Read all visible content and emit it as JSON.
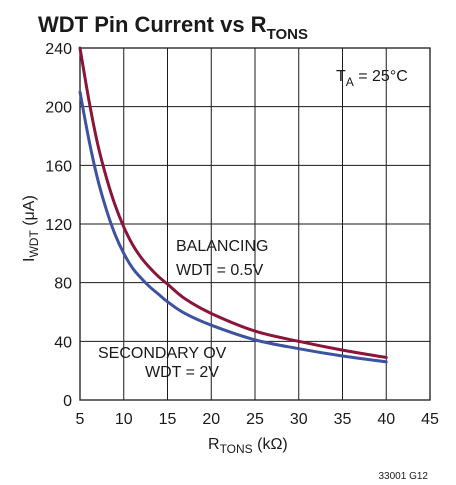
{
  "chart_data": {
    "type": "line",
    "title": {
      "main": "WDT Pin Current vs R",
      "sub": "TONS"
    },
    "xlabel": {
      "main": "R",
      "sub": "TONS",
      "rest": " (kΩ)"
    },
    "ylabel": {
      "main": "I",
      "sub": "WDT",
      "rest": " (μA)"
    },
    "xlim": [
      5,
      45
    ],
    "ylim": [
      0,
      240
    ],
    "xticks": [
      "5",
      "10",
      "15",
      "20",
      "25",
      "30",
      "35",
      "40",
      "45"
    ],
    "yticks": [
      "0",
      "40",
      "80",
      "120",
      "160",
      "200",
      "240"
    ],
    "grid": true,
    "condition": {
      "main": "T",
      "sub": "A",
      "rest": " = 25°C"
    },
    "series": [
      {
        "labels": [
          "BALANCING",
          "WDT = 0.5V"
        ],
        "color": "#8b1538",
        "x": [
          5,
          6,
          7,
          8,
          9,
          10,
          11,
          12,
          13,
          14,
          15,
          17,
          20,
          25,
          30,
          35,
          40
        ],
        "y": [
          240,
          205,
          175,
          152,
          133,
          118,
          106,
          97,
          90,
          84,
          79,
          69,
          59,
          47,
          40,
          34,
          29
        ]
      },
      {
        "labels": [
          "SECONDARY OV",
          "WDT = 2V"
        ],
        "color": "#3d52a1",
        "x": [
          5,
          6,
          7,
          8,
          9,
          10,
          11,
          12,
          13,
          14,
          15,
          17,
          20,
          25,
          30,
          35,
          40
        ],
        "y": [
          210,
          178,
          151,
          130,
          113,
          100,
          90,
          83,
          77,
          72,
          67,
          59,
          51,
          41,
          35,
          30,
          26
        ]
      }
    ],
    "footnote": "33001 G12"
  }
}
